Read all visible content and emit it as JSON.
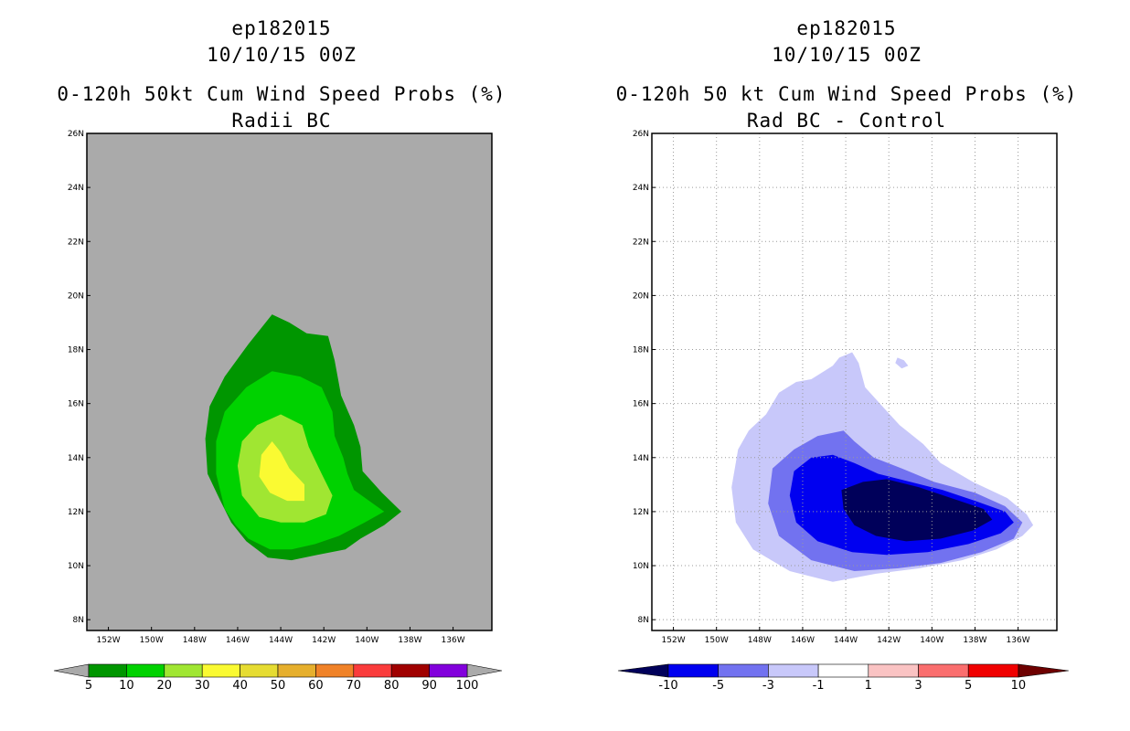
{
  "chart_data": [
    {
      "type": "heatmap",
      "title_lines": [
        "ep182015",
        "10/10/15 00Z",
        "0-120h 50kt Cum Wind Speed Probs (%)",
        "Radii BC"
      ],
      "x_ticks": [
        "152W",
        "150W",
        "148W",
        "146W",
        "144W",
        "142W",
        "140W",
        "138W",
        "136W"
      ],
      "x_tick_values": [
        -152,
        -150,
        -148,
        -146,
        -144,
        -142,
        -140,
        -138,
        -136
      ],
      "y_ticks": [
        "8N",
        "10N",
        "12N",
        "14N",
        "16N",
        "18N",
        "20N",
        "22N",
        "24N",
        "26N"
      ],
      "y_tick_values": [
        8,
        10,
        12,
        14,
        16,
        18,
        20,
        22,
        24,
        26
      ],
      "xlim": [
        -153,
        -134.2
      ],
      "ylim": [
        7.6,
        26
      ],
      "grid": false,
      "background_color": "#aaaaaa",
      "colorbar": {
        "labels": [
          "5",
          "10",
          "20",
          "30",
          "40",
          "50",
          "60",
          "70",
          "80",
          "90",
          "100"
        ],
        "colors": [
          "#009600",
          "#00d200",
          "#a0e632",
          "#fafa32",
          "#e6dc32",
          "#e6af2d",
          "#f08228",
          "#fa3c3c",
          "#a00000",
          "#8200dc"
        ],
        "under_color": "#aaaaaa",
        "over_color": "#aaaaaa"
      },
      "contours": [
        {
          "level": "5-10",
          "color": "#009600",
          "points": [
            [
              -146.8,
              12.4
            ],
            [
              -147.4,
              13.4
            ],
            [
              -147.5,
              14.7
            ],
            [
              -147.3,
              15.9
            ],
            [
              -146.6,
              17.0
            ],
            [
              -145.5,
              18.2
            ],
            [
              -144.4,
              19.3
            ],
            [
              -143.6,
              19.0
            ],
            [
              -142.8,
              18.6
            ],
            [
              -141.8,
              18.5
            ],
            [
              -141.5,
              17.6
            ],
            [
              -141.2,
              16.3
            ],
            [
              -140.6,
              15.2
            ],
            [
              -140.3,
              14.4
            ],
            [
              -140.2,
              13.5
            ],
            [
              -139.3,
              12.7
            ],
            [
              -138.4,
              12.0
            ],
            [
              -139.2,
              11.5
            ],
            [
              -140.3,
              11.0
            ],
            [
              -141.0,
              10.6
            ],
            [
              -142.3,
              10.4
            ],
            [
              -143.5,
              10.2
            ],
            [
              -144.6,
              10.3
            ],
            [
              -145.6,
              10.9
            ],
            [
              -146.3,
              11.6
            ]
          ]
        },
        {
          "level": "10-20",
          "color": "#00d200",
          "points": [
            [
              -146.6,
              12.1
            ],
            [
              -147.0,
              13.4
            ],
            [
              -147.0,
              14.6
            ],
            [
              -146.6,
              15.7
            ],
            [
              -145.6,
              16.6
            ],
            [
              -144.4,
              17.2
            ],
            [
              -143.1,
              17.0
            ],
            [
              -142.1,
              16.6
            ],
            [
              -141.6,
              15.7
            ],
            [
              -141.5,
              14.8
            ],
            [
              -141.1,
              14.0
            ],
            [
              -140.9,
              13.4
            ],
            [
              -140.6,
              12.8
            ],
            [
              -139.2,
              12.0
            ],
            [
              -140.1,
              11.6
            ],
            [
              -141.3,
              11.1
            ],
            [
              -142.4,
              10.8
            ],
            [
              -143.5,
              10.6
            ],
            [
              -144.5,
              10.6
            ],
            [
              -145.5,
              11.0
            ],
            [
              -146.1,
              11.5
            ]
          ]
        },
        {
          "level": "20-30",
          "color": "#a0e632",
          "points": [
            [
              -145.8,
              12.6
            ],
            [
              -146.0,
              13.7
            ],
            [
              -145.8,
              14.6
            ],
            [
              -145.1,
              15.2
            ],
            [
              -144.0,
              15.6
            ],
            [
              -143.0,
              15.2
            ],
            [
              -142.7,
              14.4
            ],
            [
              -142.1,
              13.4
            ],
            [
              -141.6,
              12.6
            ],
            [
              -141.9,
              11.9
            ],
            [
              -142.9,
              11.6
            ],
            [
              -144.0,
              11.6
            ],
            [
              -145.0,
              11.8
            ]
          ]
        },
        {
          "level": "30-40",
          "color": "#fafa32",
          "points": [
            [
              -145.0,
              13.3
            ],
            [
              -144.9,
              14.1
            ],
            [
              -144.4,
              14.6
            ],
            [
              -144.0,
              14.2
            ],
            [
              -143.6,
              13.6
            ],
            [
              -142.9,
              13.0
            ],
            [
              -142.9,
              12.4
            ],
            [
              -143.7,
              12.4
            ],
            [
              -144.5,
              12.7
            ]
          ]
        }
      ]
    },
    {
      "type": "heatmap",
      "title_lines": [
        "ep182015",
        "10/10/15 00Z",
        "0-120h 50 kt Cum Wind Speed Probs (%)",
        "Rad BC - Control"
      ],
      "x_ticks": [
        "152W",
        "150W",
        "148W",
        "146W",
        "144W",
        "142W",
        "140W",
        "138W",
        "136W"
      ],
      "x_tick_values": [
        -152,
        -150,
        -148,
        -146,
        -144,
        -142,
        -140,
        -138,
        -136
      ],
      "y_ticks": [
        "8N",
        "10N",
        "12N",
        "14N",
        "16N",
        "18N",
        "20N",
        "22N",
        "24N",
        "26N"
      ],
      "y_tick_values": [
        8,
        10,
        12,
        14,
        16,
        18,
        20,
        22,
        24,
        26
      ],
      "xlim": [
        -153,
        -134.2
      ],
      "ylim": [
        7.6,
        26
      ],
      "grid": true,
      "background_color": "#ffffff",
      "colorbar": {
        "labels": [
          "-10",
          "-5",
          "-3",
          "-1",
          "1",
          "3",
          "5",
          "10"
        ],
        "colors": [
          "#0000f0",
          "#7272f0",
          "#c8c8fa",
          "#ffffff",
          "#fac3c3",
          "#fa6e6e",
          "#f00000"
        ],
        "under_color": "#00005a",
        "over_color": "#6e0000"
      },
      "contours": [
        {
          "level": "-3 to -1",
          "color": "#c8c8fa",
          "points": [
            [
              -149.0,
              14.3
            ],
            [
              -148.5,
              15.0
            ],
            [
              -147.7,
              15.6
            ],
            [
              -147.1,
              16.4
            ],
            [
              -146.3,
              16.8
            ],
            [
              -145.6,
              16.9
            ],
            [
              -145.2,
              17.1
            ],
            [
              -144.6,
              17.4
            ],
            [
              -144.3,
              17.7
            ],
            [
              -143.7,
              17.9
            ],
            [
              -143.4,
              17.5
            ],
            [
              -143.1,
              16.6
            ],
            [
              -142.3,
              15.9
            ],
            [
              -141.5,
              15.2
            ],
            [
              -140.4,
              14.5
            ],
            [
              -139.6,
              13.8
            ],
            [
              -138.1,
              13.1
            ],
            [
              -136.5,
              12.5
            ],
            [
              -135.6,
              11.9
            ],
            [
              -135.3,
              11.5
            ],
            [
              -135.8,
              11.1
            ],
            [
              -137.0,
              10.6
            ],
            [
              -138.6,
              10.2
            ],
            [
              -140.6,
              9.9
            ],
            [
              -142.6,
              9.7
            ],
            [
              -144.6,
              9.4
            ],
            [
              -146.6,
              9.8
            ],
            [
              -148.3,
              10.6
            ],
            [
              -149.1,
              11.6
            ],
            [
              -149.3,
              12.9
            ]
          ]
        },
        {
          "level": "-5 to -3",
          "color": "#7272f0",
          "points": [
            [
              -147.6,
              12.3
            ],
            [
              -147.4,
              13.6
            ],
            [
              -146.4,
              14.3
            ],
            [
              -145.3,
              14.8
            ],
            [
              -144.1,
              15.0
            ],
            [
              -143.6,
              14.6
            ],
            [
              -142.7,
              14.0
            ],
            [
              -141.4,
              13.6
            ],
            [
              -139.9,
              13.1
            ],
            [
              -138.0,
              12.7
            ],
            [
              -136.6,
              12.2
            ],
            [
              -135.8,
              11.6
            ],
            [
              -136.2,
              11.0
            ],
            [
              -137.7,
              10.5
            ],
            [
              -139.6,
              10.1
            ],
            [
              -141.6,
              9.9
            ],
            [
              -143.6,
              9.8
            ],
            [
              -145.6,
              10.2
            ],
            [
              -147.1,
              11.1
            ]
          ]
        },
        {
          "level": "-10 to -5",
          "color": "#0000f0",
          "points": [
            [
              -146.6,
              12.6
            ],
            [
              -146.4,
              13.5
            ],
            [
              -145.6,
              14.0
            ],
            [
              -144.6,
              14.1
            ],
            [
              -143.6,
              13.8
            ],
            [
              -142.5,
              13.4
            ],
            [
              -141.0,
              13.1
            ],
            [
              -139.5,
              12.8
            ],
            [
              -138.0,
              12.4
            ],
            [
              -136.6,
              12.0
            ],
            [
              -136.2,
              11.6
            ],
            [
              -136.8,
              11.2
            ],
            [
              -138.3,
              10.8
            ],
            [
              -140.2,
              10.5
            ],
            [
              -142.1,
              10.4
            ],
            [
              -143.7,
              10.5
            ],
            [
              -145.3,
              10.9
            ],
            [
              -146.3,
              11.6
            ]
          ]
        },
        {
          "level": "< -10",
          "color": "#00005a",
          "points": [
            [
              -144.1,
              12.1
            ],
            [
              -144.2,
              12.8
            ],
            [
              -143.2,
              13.1
            ],
            [
              -142.1,
              13.2
            ],
            [
              -140.6,
              12.9
            ],
            [
              -139.1,
              12.5
            ],
            [
              -137.6,
              12.1
            ],
            [
              -137.2,
              11.7
            ],
            [
              -138.1,
              11.3
            ],
            [
              -139.6,
              11.0
            ],
            [
              -141.2,
              10.9
            ],
            [
              -142.6,
              11.1
            ],
            [
              -143.6,
              11.5
            ]
          ]
        },
        {
          "level": "-3 to -1 (patch)",
          "color": "#c8c8fa",
          "points": [
            [
              -141.7,
              17.5
            ],
            [
              -141.6,
              17.7
            ],
            [
              -141.3,
              17.6
            ],
            [
              -141.1,
              17.4
            ],
            [
              -141.4,
              17.3
            ]
          ]
        }
      ]
    }
  ]
}
